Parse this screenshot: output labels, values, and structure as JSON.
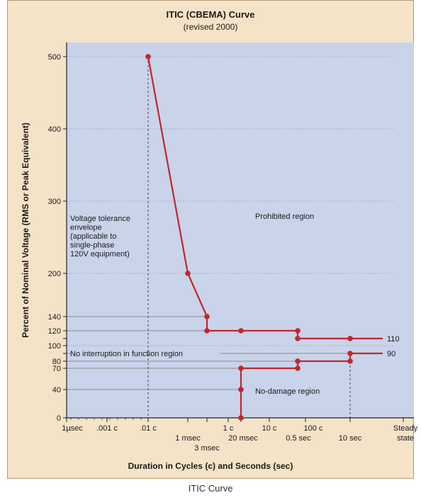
{
  "caption": "ITIC Curve",
  "colors": {
    "frame": "#f5e3c8",
    "plot": "#c9d3ea",
    "curve": "#c0272d",
    "grid": "#9a9a9a",
    "ref": "#8c8c8c"
  },
  "chart_data": {
    "type": "line",
    "title": "ITIC (CBEMA) Curve",
    "subtitle": "(revised 2000)",
    "xlabel": "Duration in Cycles (c) and Seconds (sec)",
    "ylabel": "Percent of Nominal Voltage (RMS or Peak Equivalent)",
    "ylim": [
      0,
      500
    ],
    "x_scale": "log",
    "y_ticks": [
      0,
      40,
      70,
      80,
      90,
      100,
      110,
      120,
      140,
      200,
      300,
      400,
      500
    ],
    "y_tick_labels": [
      "0",
      "40",
      "70",
      "80",
      "",
      "100",
      "",
      "120",
      "140",
      "200",
      "300",
      "400",
      "500"
    ],
    "x_tick_labels": [
      {
        "label": "1µsec",
        "row": 1
      },
      {
        "label": ".001 c",
        "row": 1
      },
      {
        "label": ".01 c",
        "row": 1
      },
      {
        "label": "1 msec",
        "row": 2
      },
      {
        "label": "3 msec",
        "row": 3
      },
      {
        "label": "1 c",
        "row": 1
      },
      {
        "label": "20 msec",
        "row": 2
      },
      {
        "label": "10 c",
        "row": 1
      },
      {
        "label": "100 c",
        "row": 1
      },
      {
        "label": "0.5 sec",
        "row": 2
      },
      {
        "label": "10 sec",
        "row": 2
      },
      {
        "label": "Steady",
        "row": 1
      },
      {
        "label": "state",
        "row": 2
      }
    ],
    "grid_y": [
      100,
      200,
      300,
      400,
      500
    ],
    "series": [
      {
        "role": "upper",
        "points": [
          {
            "x": ".01 c",
            "y": 500
          },
          {
            "x": "1 msec",
            "y": 200
          },
          {
            "x": "3 msec",
            "y": 140
          },
          {
            "x": "3 msec",
            "y": 120
          },
          {
            "x": "20 msec",
            "y": 120
          },
          {
            "x": "0.5 sec",
            "y": 120
          },
          {
            "x": "0.5 sec",
            "y": 110
          },
          {
            "x": "10 sec",
            "y": 110
          },
          {
            "x": "Steady state",
            "y": 110
          }
        ]
      },
      {
        "role": "lower",
        "points": [
          {
            "x": "20 msec",
            "y": 0
          },
          {
            "x": "20 msec",
            "y": 40
          },
          {
            "x": "20 msec",
            "y": 70
          },
          {
            "x": "0.5 sec",
            "y": 70
          },
          {
            "x": "0.5 sec",
            "y": 80
          },
          {
            "x": "10 sec",
            "y": 80
          },
          {
            "x": "10 sec",
            "y": 90
          },
          {
            "x": "Steady state",
            "y": 90
          }
        ]
      }
    ],
    "end_labels": [
      "110",
      "90"
    ],
    "annotations": [
      {
        "id": "envelope",
        "lines": [
          "Voltage tolerance",
          "envelope",
          "(applicable to",
          "single-phase",
          "120V equipment)"
        ]
      },
      {
        "id": "prohibited",
        "lines": [
          "Prohibited region"
        ]
      },
      {
        "id": "no-interruption",
        "lines": [
          "No interruption in function region"
        ]
      },
      {
        "id": "no-damage",
        "lines": [
          "No-damage region"
        ]
      }
    ]
  }
}
